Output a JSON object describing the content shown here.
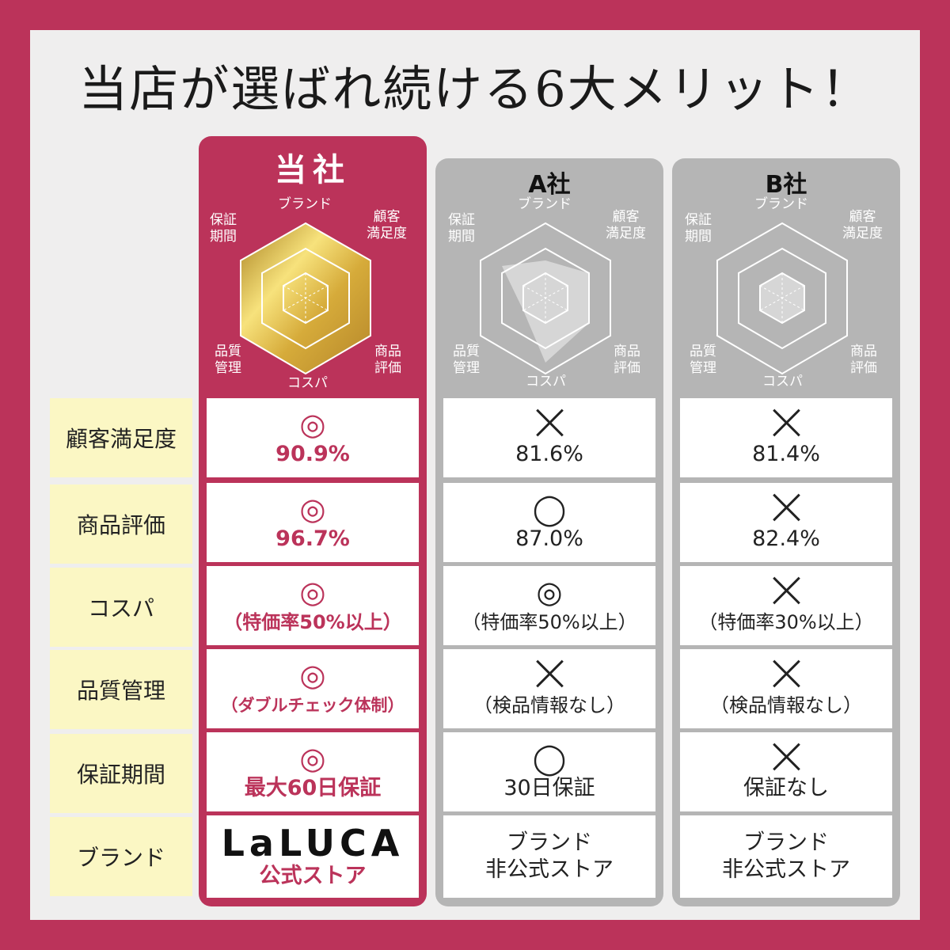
{
  "title": "当店が選ばれ続ける6大メリット！",
  "columns": {
    "us": {
      "name": "当社"
    },
    "a": {
      "name": "A社"
    },
    "b": {
      "name": "B社"
    }
  },
  "radar_labels": {
    "top": "ブランド",
    "top_right": "顧客\n満足度",
    "bottom_right": "商品\n評価",
    "bottom": "コスパ",
    "bottom_left": "品質\n管理",
    "top_left": "保証\n期間"
  },
  "rows": [
    {
      "label": "顧客満足度",
      "us": {
        "mark": "◎",
        "value": "90.9%"
      },
      "a": {
        "mark": "cross",
        "value": "81.6%"
      },
      "b": {
        "mark": "cross",
        "value": "81.4%"
      }
    },
    {
      "label": "商品評価",
      "us": {
        "mark": "◎",
        "value": "96.7%"
      },
      "a": {
        "mark": "◯",
        "value": "87.0%"
      },
      "b": {
        "mark": "cross",
        "value": "82.4%"
      }
    },
    {
      "label": "コスパ",
      "us": {
        "mark": "◎",
        "value": "（特価率50%以上）"
      },
      "a": {
        "mark": "◎",
        "value": "（特価率50%以上）"
      },
      "b": {
        "mark": "cross",
        "value": "（特価率30%以上）"
      }
    },
    {
      "label": "品質管理",
      "us": {
        "mark": "◎",
        "value": "（ダブルチェック体制）"
      },
      "a": {
        "mark": "cross",
        "value": "（検品情報なし）"
      },
      "b": {
        "mark": "cross",
        "value": "（検品情報なし）"
      }
    },
    {
      "label": "保証期間",
      "us": {
        "mark": "◎",
        "value": "最大60日保証"
      },
      "a": {
        "mark": "◯",
        "value": "30日保証"
      },
      "b": {
        "mark": "cross",
        "value": "保証なし"
      }
    },
    {
      "label": "ブランド",
      "us": {
        "logo": "LaLUCA",
        "value": "公式ストア"
      },
      "a": {
        "line1": "ブランド",
        "line2": "非公式ストア"
      },
      "b": {
        "line1": "ブランド",
        "line2": "非公式ストア"
      }
    }
  ],
  "colors": {
    "brand": "#bb335a",
    "gray": "#b5b5b5",
    "label_bg": "#fbf7c4",
    "gold": "#d9b44a"
  }
}
